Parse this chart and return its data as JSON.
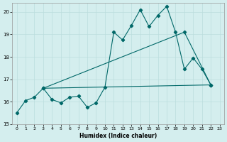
{
  "xlabel": "Humidex (Indice chaleur)",
  "bg_color": "#d4eeee",
  "grid_color": "#bbdddd",
  "line_color": "#006868",
  "xlim": [
    -0.5,
    23.5
  ],
  "ylim": [
    15,
    20.4
  ],
  "yticks": [
    15,
    16,
    17,
    18,
    19,
    20
  ],
  "xticks": [
    0,
    1,
    2,
    3,
    4,
    5,
    6,
    7,
    8,
    9,
    10,
    11,
    12,
    13,
    14,
    15,
    16,
    17,
    18,
    19,
    20,
    21,
    22,
    23
  ],
  "zigzag_x": [
    0,
    1,
    2,
    3,
    4,
    5,
    6,
    7,
    8,
    9,
    10,
    11,
    12,
    13,
    14,
    15,
    16,
    17,
    18,
    19,
    20,
    21,
    22
  ],
  "zigzag_y": [
    15.5,
    16.05,
    16.2,
    16.6,
    16.1,
    15.95,
    16.2,
    16.25,
    15.75,
    15.95,
    16.65,
    19.1,
    18.75,
    19.4,
    20.1,
    19.35,
    19.85,
    20.25,
    19.1,
    17.45,
    17.95,
    17.45,
    16.75
  ],
  "upper_line_x": [
    3,
    19,
    22
  ],
  "upper_line_y": [
    16.6,
    19.1,
    16.75
  ],
  "lower_line_x": [
    3,
    22
  ],
  "lower_line_y": [
    16.6,
    16.75
  ]
}
